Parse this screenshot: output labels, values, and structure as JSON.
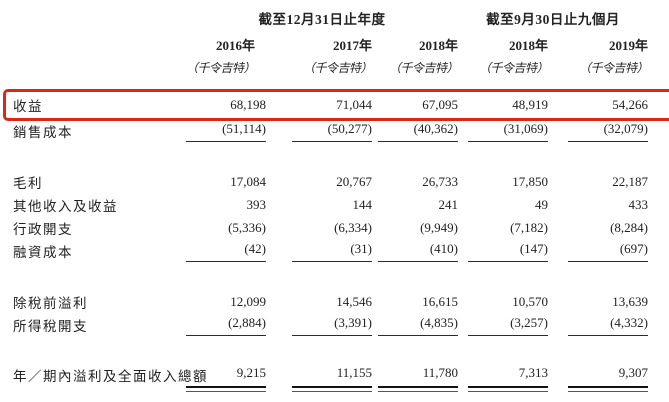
{
  "table": {
    "highlight_color": "#de251c",
    "col_groups": [
      {
        "label": "截至12月31日止年度"
      },
      {
        "label": "截至9月30日止九個月"
      }
    ],
    "columns": [
      {
        "year": "2016年",
        "unit": "（千令吉特）"
      },
      {
        "year": "2017年",
        "unit": "（千令吉特）"
      },
      {
        "year": "2018年",
        "unit": "（千令吉特）"
      },
      {
        "year": "2018年",
        "unit": "（千令吉特）"
      },
      {
        "year": "2019年",
        "unit": "（千令吉特）"
      }
    ],
    "rows": [
      {
        "label": "收益",
        "values": [
          "68,198",
          "71,044",
          "67,095",
          "48,919",
          "54,266"
        ],
        "highlighted": true
      },
      {
        "label": "銷售成本",
        "values": [
          "(51,114)",
          "(50,277)",
          "(40,362)",
          "(31,069)",
          "(32,079)"
        ]
      },
      {
        "label": "毛利",
        "values": [
          "17,084",
          "20,767",
          "26,733",
          "17,850",
          "22,187"
        ]
      },
      {
        "label": "其他收入及收益",
        "values": [
          "393",
          "144",
          "241",
          "49",
          "433"
        ]
      },
      {
        "label": "行政開支",
        "values": [
          "(5,336)",
          "(6,334)",
          "(9,949)",
          "(7,182)",
          "(8,284)"
        ]
      },
      {
        "label": "融資成本",
        "values": [
          "(42)",
          "(31)",
          "(410)",
          "(147)",
          "(697)"
        ]
      },
      {
        "label": "除稅前溢利",
        "values": [
          "12,099",
          "14,546",
          "16,615",
          "10,570",
          "13,639"
        ]
      },
      {
        "label": "所得稅開支",
        "values": [
          "(2,884)",
          "(3,391)",
          "(4,835)",
          "(3,257)",
          "(4,332)"
        ]
      },
      {
        "label": "年／期內溢利及全面收入總額",
        "values": [
          "9,215",
          "11,155",
          "11,780",
          "7,313",
          "9,307"
        ]
      }
    ]
  }
}
